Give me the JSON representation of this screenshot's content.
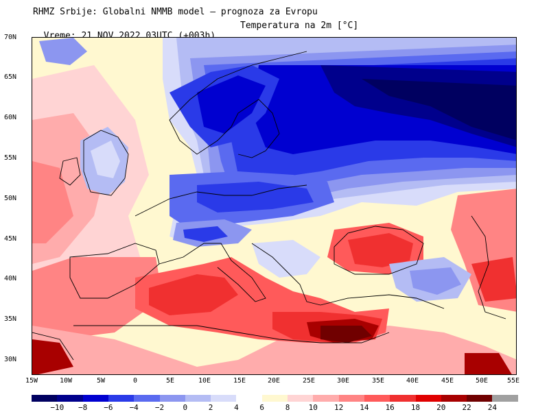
{
  "header": {
    "line1": "RHMZ Srbije: Globalni NMMB model — prognoza za Evropu",
    "line2_time": "Vreme: 21 NOV 2022 03UTC (+003h)",
    "line2_param": "Temperatura na 2m [°C]"
  },
  "map": {
    "lat_labels": [
      "70N",
      "65N",
      "60N",
      "55N",
      "50N",
      "45N",
      "40N",
      "35N",
      "30N"
    ],
    "lon_labels": [
      "15W",
      "10W",
      "5W",
      "0",
      "5E",
      "10E",
      "15E",
      "20E",
      "25E",
      "30E",
      "35E",
      "40E",
      "45E",
      "50E",
      "55E"
    ]
  },
  "legend": {
    "labels": [
      "−10",
      "−8",
      "−6",
      "−4",
      "−2",
      "0",
      "2",
      "4",
      "6",
      "8",
      "10",
      "12",
      "14",
      "16",
      "18",
      "20",
      "22",
      "24"
    ],
    "colors": {
      "lt_-10": "#000060",
      "-10_-8": "#00008c",
      "-8_-6": "#0000d0",
      "-6_-4": "#2a3ae8",
      "-4_-2": "#5a6af0",
      "-2_0": "#8c96f0",
      "0_2": "#b4bcf4",
      "2_4": "#d8dcfa",
      "4_6": "#ffffff",
      "6_8": "#fff8d0",
      "8_10": "#ffd4d4",
      "10_12": "#ffacac",
      "12_14": "#ff8484",
      "14_16": "#ff5a5a",
      "16_18": "#f03030",
      "18_20": "#e00000",
      "20_22": "#a80000",
      "22_24": "#700000",
      "gt_24": "#a0a0a0"
    }
  }
}
